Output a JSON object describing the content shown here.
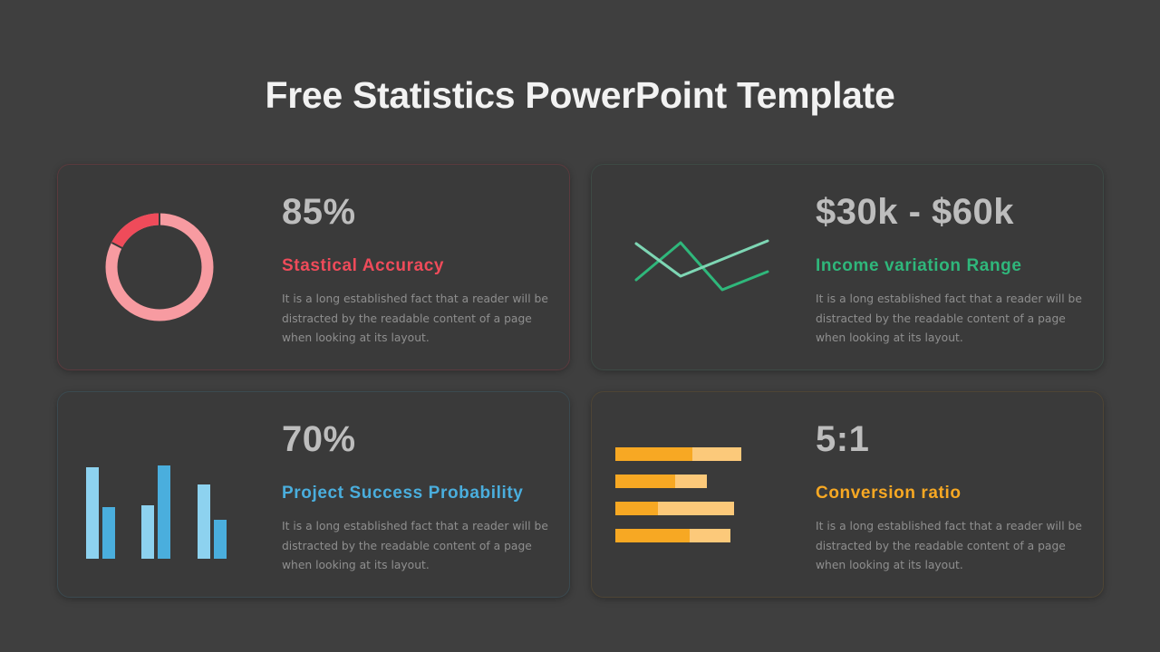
{
  "title": "Free Statistics PowerPoint Template",
  "colors": {
    "background": "#3f3f3f",
    "red": "#ef4b5a",
    "pink": "#f79ba1",
    "green": "#2fb77b",
    "light_green": "#7ed6b4",
    "blue": "#4aaedd",
    "light_blue": "#8dd2ef",
    "orange": "#f7a823",
    "light_orange": "#fcc97a"
  },
  "cards": [
    {
      "stat": "85%",
      "heading": "Stastical Accuracy",
      "accent": "#ef4b5a",
      "description": "It is a long established fact that a reader will be distracted by the readable content of a page when looking at its layout.",
      "icon": "donut-chart-icon"
    },
    {
      "stat": "$30k - $60k",
      "heading": "Income variation Range",
      "accent": "#2fb77b",
      "description": "It is a long established fact that a reader will be distracted by the readable content of a page when looking at its layout.",
      "icon": "line-chart-icon"
    },
    {
      "stat": "70%",
      "heading": "Project Success Probability",
      "accent": "#4aaedd",
      "description": "It is a long established fact that a reader will be distracted by the readable content of a page when looking at its layout.",
      "icon": "bar-chart-icon"
    },
    {
      "stat": "5:1",
      "heading": "Conversion ratio",
      "accent": "#f7a823",
      "description": "It is a long established fact that a reader will be distracted by the readable content of a page when looking at its layout.",
      "icon": "stacked-bar-icon"
    }
  ]
}
